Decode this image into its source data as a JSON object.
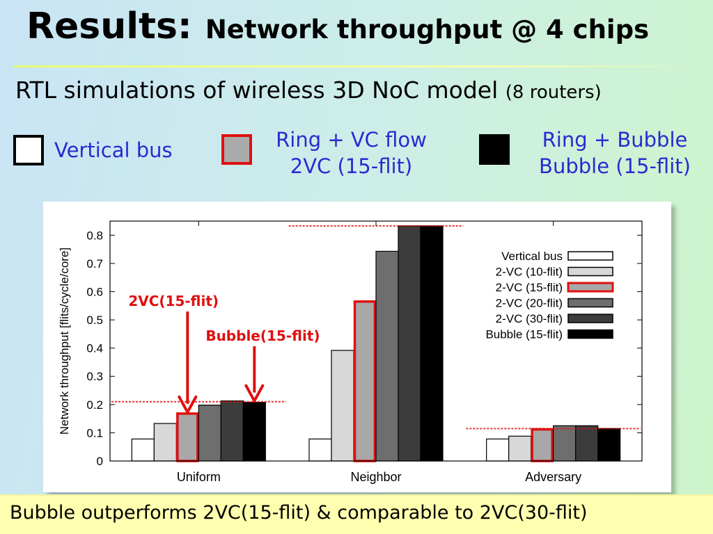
{
  "slide": {
    "title_main": "Results:",
    "title_sub": "Network throughput @ 4 chips",
    "subtitle_main": "RTL simulations of wireless 3D NoC model",
    "subtitle_note": "(8 routers)",
    "footer": "Bubble outperforms 2VC(15-flit) & comparable to 2VC(30-flit)"
  },
  "top_legend": [
    {
      "line1": "Vertical bus",
      "line2": "",
      "fill": "#ffffff",
      "border": "#000000"
    },
    {
      "line1": "Ring + VC flow",
      "line2": "2VC (15-flit)",
      "fill": "#aaaaaa",
      "border": "#e01010"
    },
    {
      "line1": "Ring + Bubble",
      "line2": "Bubble (15-flit)",
      "fill": "#000000",
      "border": "#000000"
    }
  ],
  "colors": {
    "accent_red": "#e01010",
    "legend_text_blue": "#2a2ad0"
  },
  "chart_data": {
    "type": "bar",
    "ylabel": "Network throughput [flits/cycle/core]",
    "ylim": [
      0,
      0.85
    ],
    "yticks": [
      "0",
      "0.1",
      "0.2",
      "0.3",
      "0.4",
      "0.5",
      "0.6",
      "0.7",
      "0.8"
    ],
    "categories": [
      "Uniform",
      "Neighbor",
      "Adversary"
    ],
    "legend_placement": "top-right",
    "series": [
      {
        "name": "Vertical bus",
        "values": [
          0.078,
          0.078,
          0.078
        ],
        "fill": "#ffffff"
      },
      {
        "name": "2-VC (10-flit)",
        "values": [
          0.133,
          0.392,
          0.088
        ],
        "fill": "#d8d8d8"
      },
      {
        "name": "2-VC (15-flit)",
        "values": [
          0.168,
          0.565,
          0.112
        ],
        "fill": "#a8a8a8",
        "highlight": true
      },
      {
        "name": "2-VC (20-flit)",
        "values": [
          0.198,
          0.743,
          0.125
        ],
        "fill": "#6e6e6e"
      },
      {
        "name": "2-VC (30-flit)",
        "values": [
          0.213,
          0.833,
          0.125
        ],
        "fill": "#3c3c3c"
      },
      {
        "name": "Bubble (15-flit)",
        "values": [
          0.208,
          0.833,
          0.115
        ],
        "fill": "#000000"
      }
    ],
    "reference_lines": [
      {
        "category": "Uniform",
        "value": 0.21
      },
      {
        "category": "Neighbor",
        "value": 0.833
      },
      {
        "category": "Adversary",
        "value": 0.115
      }
    ],
    "annotations": [
      {
        "text": "2VC(15-flit)",
        "points_to": "Uniform / 2-VC (15-flit)"
      },
      {
        "text": "Bubble(15-flit)",
        "points_to": "Uniform / Bubble (15-flit)"
      }
    ]
  }
}
